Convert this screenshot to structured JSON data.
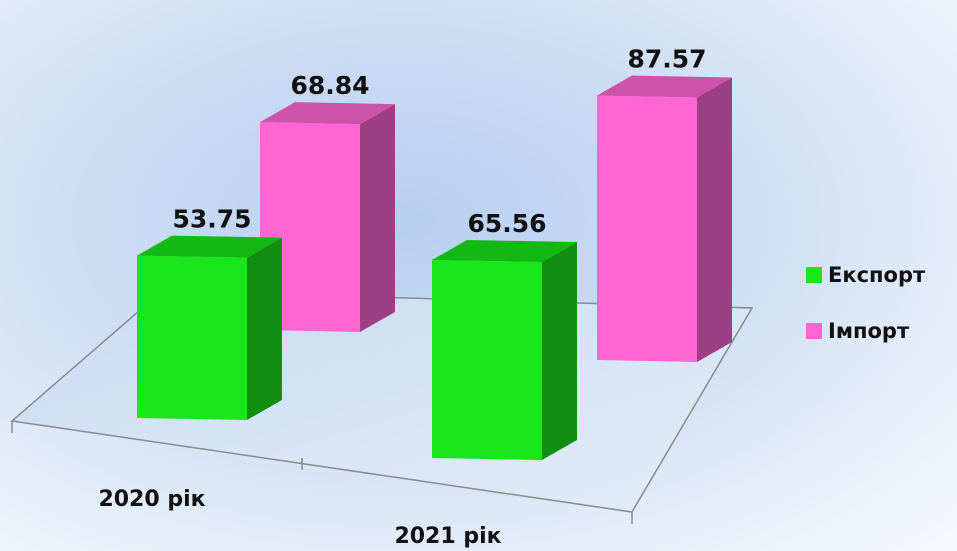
{
  "chart_data": {
    "type": "bar",
    "categories": [
      "2020 рік",
      "2021 рік"
    ],
    "series": [
      {
        "name": "Експорт",
        "values": [
          53.75,
          65.56
        ],
        "color": "#19e619"
      },
      {
        "name": "Імпорт",
        "values": [
          68.84,
          87.57
        ],
        "color": "#ff66d4"
      }
    ],
    "title": "",
    "xlabel": "",
    "ylabel": "",
    "legend_position": "right",
    "style": "3d-clustered-column"
  }
}
